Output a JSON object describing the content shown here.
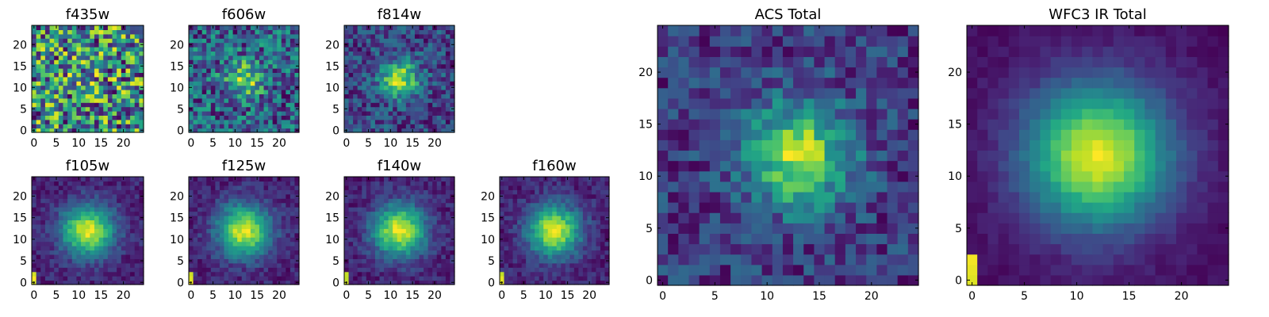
{
  "figure": {
    "background": "#ffffff"
  },
  "chart_data": [
    {
      "type": "heatmap",
      "id": "f435w",
      "title": "f435w",
      "xlim": [
        0,
        24
      ],
      "ylim": [
        0,
        24
      ],
      "xticks": [
        0,
        5,
        10,
        15,
        20
      ],
      "yticks": [
        0,
        5,
        10,
        15,
        20
      ],
      "source_center": [
        12,
        12
      ],
      "peak": 0.05,
      "sigma": 3,
      "noise": 0.55,
      "base": 0.72
    },
    {
      "type": "heatmap",
      "id": "f606w",
      "title": "f606w",
      "xlim": [
        0,
        24
      ],
      "ylim": [
        0,
        24
      ],
      "xticks": [
        0,
        5,
        10,
        15,
        20
      ],
      "yticks": [
        0,
        5,
        10,
        15,
        20
      ],
      "source_center": [
        12,
        12
      ],
      "peak": 0.35,
      "sigma": 3,
      "noise": 0.45,
      "base": 0.55
    },
    {
      "type": "heatmap",
      "id": "f814w",
      "title": "f814w",
      "xlim": [
        0,
        24
      ],
      "ylim": [
        0,
        24
      ],
      "xticks": [
        0,
        5,
        10,
        15,
        20
      ],
      "yticks": [
        0,
        5,
        10,
        15,
        20
      ],
      "source_center": [
        12,
        12
      ],
      "peak": 0.55,
      "sigma": 3,
      "noise": 0.35,
      "base": 0.4
    },
    {
      "type": "heatmap",
      "id": "f105w",
      "title": "f105w",
      "xlim": [
        0,
        24
      ],
      "ylim": [
        0,
        24
      ],
      "xticks": [
        0,
        5,
        10,
        15,
        20
      ],
      "yticks": [
        0,
        5,
        10,
        15,
        20
      ],
      "source_center": [
        12,
        12
      ],
      "peak": 0.75,
      "sigma": 4.2,
      "noise": 0.18,
      "base": 0.22
    },
    {
      "type": "heatmap",
      "id": "f125w",
      "title": "f125w",
      "xlim": [
        0,
        24
      ],
      "ylim": [
        0,
        24
      ],
      "xticks": [
        0,
        5,
        10,
        15,
        20
      ],
      "yticks": [
        0,
        5,
        10,
        15,
        20
      ],
      "source_center": [
        12,
        12
      ],
      "peak": 0.75,
      "sigma": 4.2,
      "noise": 0.18,
      "base": 0.22
    },
    {
      "type": "heatmap",
      "id": "f140w",
      "title": "f140w",
      "xlim": [
        0,
        24
      ],
      "ylim": [
        0,
        24
      ],
      "xticks": [
        0,
        5,
        10,
        15,
        20
      ],
      "yticks": [
        0,
        5,
        10,
        15,
        20
      ],
      "source_center": [
        12,
        12
      ],
      "peak": 0.75,
      "sigma": 4.2,
      "noise": 0.18,
      "base": 0.22
    },
    {
      "type": "heatmap",
      "id": "f160w",
      "title": "f160w",
      "xlim": [
        0,
        24
      ],
      "ylim": [
        0,
        24
      ],
      "xticks": [
        0,
        5,
        10,
        15,
        20
      ],
      "yticks": [
        0,
        5,
        10,
        15,
        20
      ],
      "source_center": [
        12,
        12
      ],
      "peak": 0.75,
      "sigma": 4.2,
      "noise": 0.18,
      "base": 0.18
    },
    {
      "type": "heatmap",
      "id": "acs-total",
      "title": "ACS Total",
      "xlim": [
        0,
        24
      ],
      "ylim": [
        0,
        24
      ],
      "xticks": [
        0,
        5,
        10,
        15,
        20
      ],
      "yticks": [
        0,
        5,
        10,
        15,
        20
      ],
      "source_center": [
        13,
        12
      ],
      "peak": 0.45,
      "sigma": 3.5,
      "noise": 0.22,
      "base": 0.5
    },
    {
      "type": "heatmap",
      "id": "wfc3-ir-total",
      "title": "WFC3 IR Total",
      "xlim": [
        0,
        24
      ],
      "ylim": [
        0,
        24
      ],
      "xticks": [
        0,
        5,
        10,
        15,
        20
      ],
      "yticks": [
        0,
        5,
        10,
        15,
        20
      ],
      "source_center": [
        12,
        12
      ],
      "peak": 0.82,
      "sigma": 4.8,
      "noise": 0.07,
      "base": 0.15
    }
  ]
}
